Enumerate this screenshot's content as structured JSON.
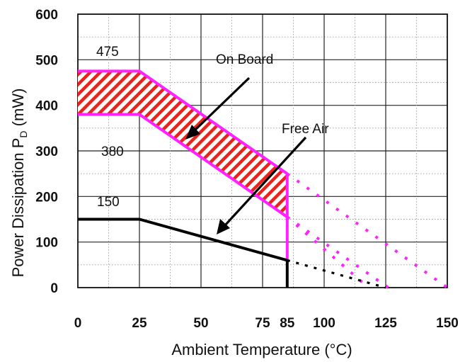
{
  "chart_data": {
    "type": "line",
    "xlabel": "Ambient Temperature (°C)",
    "ylabel_main": "Power Dissipation P",
    "ylabel_sub": "D",
    "ylabel_unit": " (mW)",
    "xlim": [
      0,
      150
    ],
    "ylim": [
      0,
      600
    ],
    "x_ticks": [
      0,
      25,
      50,
      75,
      85,
      100,
      125,
      150
    ],
    "y_ticks": [
      0,
      100,
      200,
      300,
      400,
      500,
      600
    ],
    "grid": true,
    "series": [
      {
        "name": "On Board",
        "color": "#ff22ff",
        "fill": "#e8241c",
        "upper": [
          [
            0,
            475
          ],
          [
            25,
            475
          ],
          [
            85,
            250
          ]
        ],
        "lower": [
          [
            0,
            380
          ],
          [
            25,
            380
          ],
          [
            85,
            155
          ]
        ],
        "upper_extrapolated": [
          [
            85,
            250
          ],
          [
            150,
            0
          ]
        ],
        "lower_extrapolated": [
          [
            85,
            155
          ],
          [
            126,
            0
          ]
        ]
      },
      {
        "name": "Free Air",
        "color": "#000000",
        "points": [
          [
            0,
            150
          ],
          [
            25,
            150
          ],
          [
            85,
            60
          ]
        ],
        "extrapolated": [
          [
            85,
            60
          ],
          [
            125,
            0
          ]
        ]
      }
    ],
    "extrapolated_mid": [
      [
        85,
        155
      ],
      [
        118,
        0
      ]
    ],
    "value_labels": [
      "475",
      "380",
      "150"
    ],
    "annotations": [
      "On Board",
      "Free Air"
    ]
  }
}
